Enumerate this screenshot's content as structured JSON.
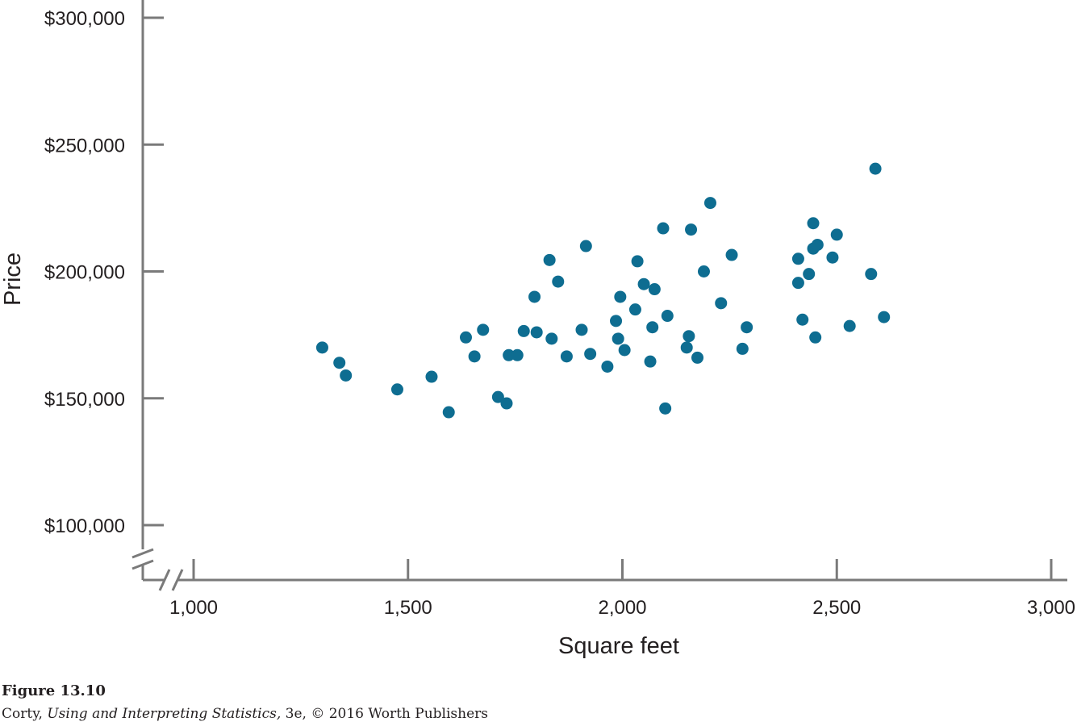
{
  "chart_data": {
    "type": "scatter",
    "xlabel": "Square feet",
    "ylabel": "Price",
    "xlim": [
      1000,
      3000
    ],
    "ylim": [
      100000,
      300000
    ],
    "x_ticks": [
      1000,
      1500,
      2000,
      2500,
      3000
    ],
    "x_tick_labels": [
      "1,000",
      "1,500",
      "2,000",
      "2,500",
      "3,000"
    ],
    "y_ticks": [
      100000,
      150000,
      200000,
      250000,
      300000
    ],
    "y_tick_labels": [
      "$100,000",
      "$150,000",
      "$200,000",
      "$250,000",
      "$300,000"
    ],
    "axis_breaks": [
      "x",
      "y"
    ],
    "grid": false,
    "legend": "none",
    "marker_color": "#0e6d91",
    "points": [
      {
        "x": 1300,
        "y": 170000
      },
      {
        "x": 1340,
        "y": 164000
      },
      {
        "x": 1355,
        "y": 159000
      },
      {
        "x": 1475,
        "y": 153500
      },
      {
        "x": 1555,
        "y": 158500
      },
      {
        "x": 1595,
        "y": 144500
      },
      {
        "x": 1635,
        "y": 174000
      },
      {
        "x": 1655,
        "y": 166500
      },
      {
        "x": 1675,
        "y": 177000
      },
      {
        "x": 1710,
        "y": 150500
      },
      {
        "x": 1730,
        "y": 148000
      },
      {
        "x": 1735,
        "y": 167000
      },
      {
        "x": 1755,
        "y": 167000
      },
      {
        "x": 1770,
        "y": 176500
      },
      {
        "x": 1795,
        "y": 190000
      },
      {
        "x": 1800,
        "y": 176000
      },
      {
        "x": 1830,
        "y": 204500
      },
      {
        "x": 1835,
        "y": 173500
      },
      {
        "x": 1850,
        "y": 196000
      },
      {
        "x": 1870,
        "y": 166500
      },
      {
        "x": 1905,
        "y": 177000
      },
      {
        "x": 1915,
        "y": 210000
      },
      {
        "x": 1925,
        "y": 167500
      },
      {
        "x": 1965,
        "y": 162500
      },
      {
        "x": 1985,
        "y": 180500
      },
      {
        "x": 1990,
        "y": 173500
      },
      {
        "x": 1995,
        "y": 190000
      },
      {
        "x": 2005,
        "y": 169000
      },
      {
        "x": 2030,
        "y": 185000
      },
      {
        "x": 2035,
        "y": 204000
      },
      {
        "x": 2050,
        "y": 195000
      },
      {
        "x": 2065,
        "y": 164500
      },
      {
        "x": 2070,
        "y": 178000
      },
      {
        "x": 2075,
        "y": 193000
      },
      {
        "x": 2095,
        "y": 217000
      },
      {
        "x": 2100,
        "y": 146000
      },
      {
        "x": 2105,
        "y": 182500
      },
      {
        "x": 2150,
        "y": 170000
      },
      {
        "x": 2155,
        "y": 174500
      },
      {
        "x": 2160,
        "y": 216500
      },
      {
        "x": 2175,
        "y": 166000
      },
      {
        "x": 2190,
        "y": 200000
      },
      {
        "x": 2205,
        "y": 227000
      },
      {
        "x": 2230,
        "y": 187500
      },
      {
        "x": 2255,
        "y": 206500
      },
      {
        "x": 2280,
        "y": 169500
      },
      {
        "x": 2290,
        "y": 178000
      },
      {
        "x": 2410,
        "y": 205000
      },
      {
        "x": 2410,
        "y": 195500
      },
      {
        "x": 2420,
        "y": 181000
      },
      {
        "x": 2435,
        "y": 199000
      },
      {
        "x": 2445,
        "y": 209000
      },
      {
        "x": 2445,
        "y": 219000
      },
      {
        "x": 2450,
        "y": 174000
      },
      {
        "x": 2455,
        "y": 210500
      },
      {
        "x": 2490,
        "y": 205500
      },
      {
        "x": 2500,
        "y": 214500
      },
      {
        "x": 2530,
        "y": 178500
      },
      {
        "x": 2580,
        "y": 199000
      },
      {
        "x": 2590,
        "y": 240500
      },
      {
        "x": 2610,
        "y": 182000
      }
    ]
  },
  "caption": {
    "figure_number": "Figure 13.10",
    "author": "Corty,",
    "book_title": "Using and Interpreting Statistics,",
    "edition_publisher": " 3e, © 2016 Worth Publishers"
  }
}
